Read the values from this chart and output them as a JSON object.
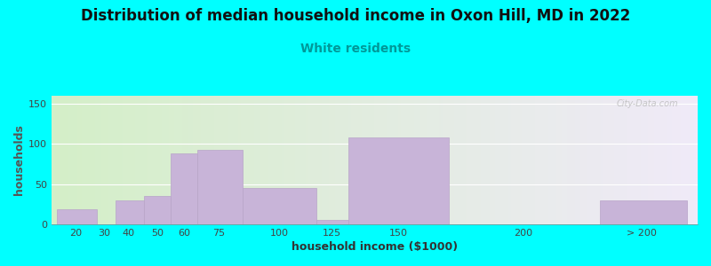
{
  "title": "Distribution of median household income in Oxon Hill, MD in 2022",
  "subtitle": "White residents",
  "xlabel": "household income ($1000)",
  "ylabel": "households",
  "background_color": "#00FFFF",
  "plot_bg_gradient_left": "#d4efc8",
  "plot_bg_gradient_right": "#f0eaf8",
  "bar_color": "#c8b4d8",
  "bar_edge_color": "#b8a4c8",
  "tick_labels": [
    "20",
    "30",
    "40",
    "50",
    "60",
    "75",
    "100",
    "125",
    "150",
    "200",
    "> 200"
  ],
  "bar_lefts": [
    10,
    25,
    32,
    43,
    53,
    63,
    80,
    108,
    120,
    158,
    215
  ],
  "bar_rights": [
    25,
    32,
    43,
    53,
    63,
    80,
    108,
    120,
    158,
    215,
    248
  ],
  "bar_heights": [
    19,
    0,
    30,
    35,
    88,
    93,
    45,
    6,
    108,
    0,
    30
  ],
  "tick_positions": [
    17,
    28,
    37,
    48,
    58,
    71,
    94,
    114,
    139,
    186,
    231
  ],
  "ylim": [
    0,
    160
  ],
  "yticks": [
    0,
    50,
    100,
    150
  ],
  "watermark": "City-Data.com",
  "title_fontsize": 12,
  "subtitle_fontsize": 10,
  "subtitle_color": "#009999",
  "axis_label_fontsize": 9,
  "tick_fontsize": 8
}
